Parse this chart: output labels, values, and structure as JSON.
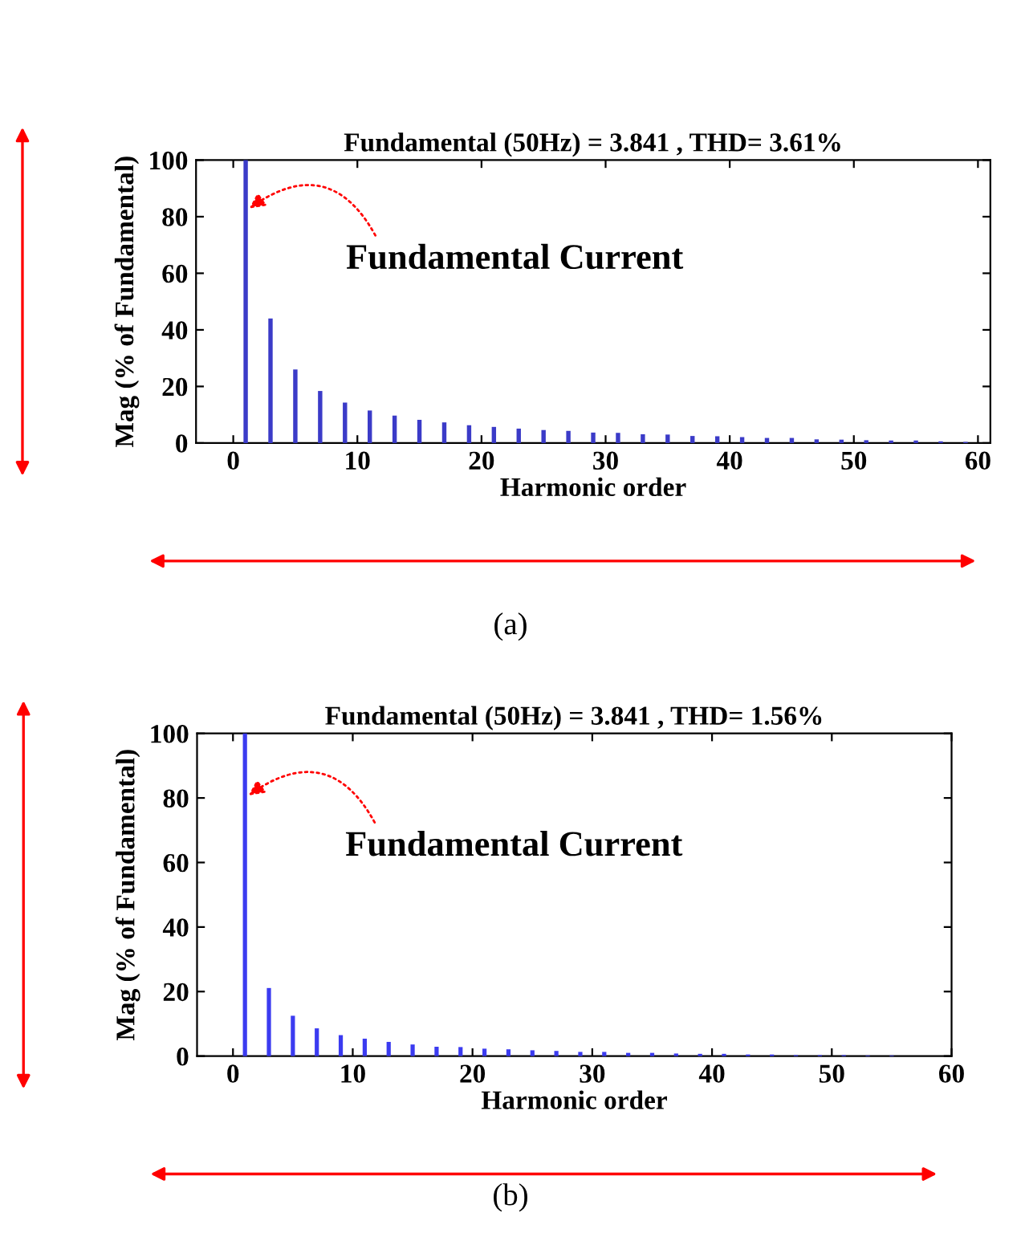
{
  "chart_data": [
    {
      "type": "bar",
      "title": "Fundamental (50Hz) = 3.841 , THD= 3.61%",
      "xlabel": "Harmonic order",
      "ylabel": "Mag (% of Fundamental)",
      "x": [
        1,
        3,
        5,
        7,
        9,
        11,
        13,
        15,
        17,
        19,
        21,
        23,
        25,
        27,
        29,
        31,
        33,
        35,
        37,
        39,
        41,
        43,
        45,
        47,
        49,
        51,
        53,
        55,
        57,
        59
      ],
      "values": [
        100,
        44,
        26,
        18.4,
        14.3,
        11.5,
        9.7,
        8.2,
        7.3,
        6.3,
        5.7,
        5.1,
        4.6,
        4.3,
        3.7,
        3.6,
        3.1,
        3.0,
        2.5,
        2.4,
        2.1,
        1.8,
        1.8,
        1.3,
        1.2,
        1.0,
        0.9,
        0.9,
        0.6,
        0.4
      ],
      "color": "#3b3bc8",
      "xlim": [
        -3,
        61
      ],
      "xticks": [
        0,
        10,
        20,
        30,
        40,
        50,
        60
      ],
      "ylim": [
        0,
        100
      ],
      "yticks": [
        0,
        20,
        40,
        60,
        80,
        100
      ],
      "grid": false,
      "annotations": [
        {
          "text": "Fundamental Current",
          "x": 1,
          "y": 82
        },
        "(a)"
      ]
    },
    {
      "type": "bar",
      "title": "Fundamental (50Hz) = 3.841 , THD= 1.56%",
      "xlabel": "Harmonic order",
      "ylabel": "Mag (% of Fundamental)",
      "x": [
        1,
        3,
        5,
        7,
        9,
        11,
        13,
        15,
        17,
        19,
        21,
        23,
        25,
        27,
        29,
        31,
        33,
        35,
        37,
        39,
        41,
        43,
        45,
        47,
        49,
        51,
        53,
        55
      ],
      "values": [
        100,
        21.1,
        12.5,
        8.6,
        6.5,
        5.4,
        4.4,
        3.6,
        2.9,
        2.8,
        2.3,
        2.1,
        1.8,
        1.6,
        1.3,
        1.3,
        1.0,
        1.0,
        0.8,
        0.7,
        0.7,
        0.5,
        0.5,
        0.3,
        0.3,
        0.3,
        0.2,
        0.2
      ],
      "color": "#3b3bf0",
      "xlim": [
        -3,
        60
      ],
      "xticks": [
        0,
        10,
        20,
        30,
        40,
        50,
        60
      ],
      "ylim": [
        0,
        100
      ],
      "yticks": [
        0,
        20,
        40,
        60,
        80,
        100
      ],
      "grid": false,
      "annotations": [
        {
          "text": "Fundamental Current",
          "x": 1,
          "y": 80
        },
        "(b)"
      ]
    }
  ]
}
